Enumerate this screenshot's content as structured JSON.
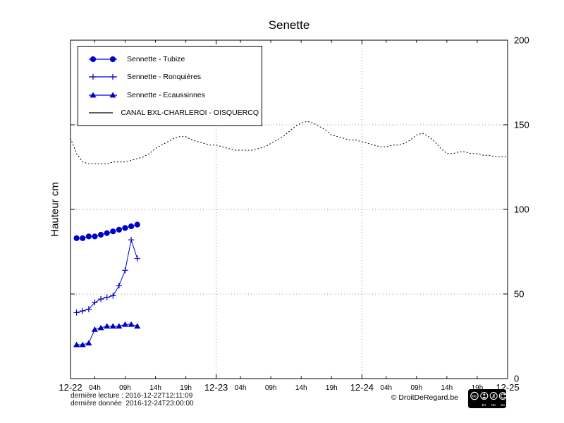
{
  "title": "Senette",
  "ylabel": "Hauteur cm",
  "colors": {
    "series_blue": "#0000cd",
    "canal_black": "#000000",
    "grid_gray": "#9a9a9a"
  },
  "chart_data": {
    "type": "line",
    "title": "Senette",
    "ylabel": "Hauteur cm",
    "x_unit": "hours since 2016-12-22 00:00",
    "xlim": [
      0,
      72
    ],
    "ylim": [
      0,
      200
    ],
    "yticks": [
      0,
      50,
      100,
      150,
      200
    ],
    "grid": {
      "vertical_at": [
        24,
        48
      ],
      "horizontal_at": [
        50,
        100,
        150
      ]
    },
    "legend_position": "top-left",
    "day_ticks": [
      {
        "pos": 0,
        "label": "12-22"
      },
      {
        "pos": 24,
        "label": "12-23"
      },
      {
        "pos": 48,
        "label": "12-24"
      },
      {
        "pos": 72,
        "label": "12-25"
      }
    ],
    "hour_ticks": [
      {
        "pos": 4,
        "label": "04h"
      },
      {
        "pos": 9,
        "label": "09h"
      },
      {
        "pos": 14,
        "label": "14h"
      },
      {
        "pos": 19,
        "label": "19h"
      },
      {
        "pos": 28,
        "label": "04h"
      },
      {
        "pos": 33,
        "label": "09h"
      },
      {
        "pos": 38,
        "label": "14h"
      },
      {
        "pos": 43,
        "label": "19h"
      },
      {
        "pos": 52,
        "label": "04h"
      },
      {
        "pos": 57,
        "label": "09h"
      },
      {
        "pos": 62,
        "label": "14h"
      },
      {
        "pos": 67,
        "label": "19h"
      }
    ],
    "series": [
      {
        "id": "tubize",
        "name": "Sennette - Tubize",
        "marker": "circle",
        "color": "#0000cd",
        "x": [
          1,
          2,
          3,
          4,
          5,
          6,
          7,
          8,
          9,
          10,
          11
        ],
        "y": [
          83,
          83,
          84,
          84,
          85,
          86,
          87,
          88,
          89,
          90,
          91
        ]
      },
      {
        "id": "ronquieres",
        "name": "Sennette - Ronquières",
        "marker": "plus",
        "color": "#0000cd",
        "x": [
          1,
          2,
          3,
          4,
          5,
          6,
          7,
          8,
          9,
          10,
          11
        ],
        "y": [
          39,
          40,
          41,
          45,
          47,
          48,
          49,
          55,
          64,
          82,
          71
        ]
      },
      {
        "id": "ecaussinnes",
        "name": "Sennette - Ecaussinnes",
        "marker": "triangle",
        "color": "#0000cd",
        "x": [
          1,
          2,
          3,
          4,
          5,
          6,
          7,
          8,
          9,
          10,
          11
        ],
        "y": [
          20,
          20,
          21,
          29,
          30,
          31,
          31,
          31,
          32,
          32,
          31
        ]
      },
      {
        "id": "canal",
        "name": "CANAL BXL-CHARLEROI - OISQUERCQ",
        "marker": "none",
        "line_style": "dotted",
        "color": "#000000",
        "x0": 0,
        "dx": 1,
        "y": [
          142,
          133,
          128,
          127,
          127,
          127,
          127,
          128,
          128,
          128,
          129,
          130,
          131,
          133,
          136,
          138,
          140,
          142,
          143,
          143,
          141,
          140,
          139,
          138,
          138,
          137,
          136,
          135,
          135,
          135,
          135,
          136,
          137,
          139,
          141,
          143,
          146,
          149,
          151,
          152,
          151,
          149,
          147,
          144,
          143,
          142,
          141,
          141,
          140,
          139,
          138,
          137,
          137,
          138,
          138,
          139,
          141,
          144,
          145,
          143,
          140,
          136,
          133,
          133,
          134,
          134,
          133,
          133,
          132,
          132,
          131,
          131,
          131
        ]
      }
    ]
  },
  "footer": {
    "line1": "dernière lecture : 2016-12-22T12:11:09",
    "line2": "dernière donnée  2016-12-24T23:00:00",
    "copyright": "© DroitDeRegard.be",
    "cc_logo": "cc",
    "nc_glyph": "$",
    "cc_labels": [
      "BY",
      "NC",
      "SA"
    ]
  }
}
